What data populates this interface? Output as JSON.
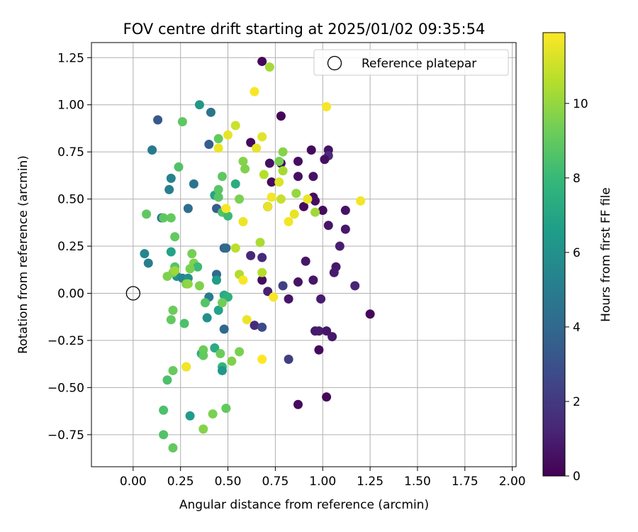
{
  "chart_data": {
    "type": "scatter",
    "title": "FOV centre drift starting at 2025/01/02 09:35:54",
    "xlabel": "Angular distance from reference (arcmin)",
    "ylabel": "Rotation from reference (arcmin)",
    "xlim": [
      -0.22,
      2.02
    ],
    "ylim": [
      -0.92,
      1.33
    ],
    "xticks": [
      "0.00",
      "0.25",
      "0.50",
      "0.75",
      "1.00",
      "1.25",
      "1.50",
      "1.75",
      "2.00"
    ],
    "yticks": [
      "−0.75",
      "−0.50",
      "−0.25",
      "0.00",
      "0.25",
      "0.50",
      "0.75",
      "1.00",
      "1.25"
    ],
    "grid": true,
    "legend": {
      "label": "Reference platepar",
      "placement": "top-right"
    },
    "reference_point": {
      "x": 0.0,
      "y": 0.0
    },
    "colorbar": {
      "label": "Hours from first FF file",
      "min": 0,
      "max": 11.9,
      "ticks": [
        "0",
        "2",
        "4",
        "6",
        "8",
        "10"
      ],
      "colormap": "viridis"
    },
    "points": [
      [
        0.68,
        1.23,
        0.2
      ],
      [
        0.62,
        0.8,
        0.3
      ],
      [
        0.78,
        0.94,
        0.2
      ],
      [
        0.72,
        0.69,
        0.5
      ],
      [
        0.73,
        0.59,
        0.3
      ],
      [
        0.78,
        0.69,
        0.3
      ],
      [
        0.87,
        0.7,
        0.4
      ],
      [
        0.94,
        0.76,
        0.3
      ],
      [
        1.03,
        0.76,
        0.6
      ],
      [
        1.03,
        0.73,
        1.5
      ],
      [
        1.01,
        0.71,
        0.5
      ],
      [
        0.87,
        0.62,
        0.5
      ],
      [
        0.95,
        0.62,
        0.6
      ],
      [
        0.95,
        0.51,
        0.4
      ],
      [
        0.96,
        0.49,
        0.5
      ],
      [
        0.9,
        0.46,
        0.3
      ],
      [
        1.0,
        0.44,
        0.3
      ],
      [
        1.12,
        0.44,
        0.6
      ],
      [
        1.03,
        0.36,
        0.7
      ],
      [
        1.12,
        0.34,
        0.8
      ],
      [
        1.09,
        0.25,
        1.0
      ],
      [
        0.71,
        0.46,
        0.1
      ],
      [
        0.62,
        0.2,
        1.3
      ],
      [
        0.68,
        0.19,
        1.4
      ],
      [
        0.91,
        0.17,
        0.7
      ],
      [
        1.07,
        0.14,
        0.8
      ],
      [
        1.06,
        0.11,
        0.9
      ],
      [
        0.68,
        0.07,
        0.4
      ],
      [
        0.79,
        0.04,
        2.3
      ],
      [
        0.87,
        0.06,
        0.6
      ],
      [
        0.95,
        0.07,
        0.7
      ],
      [
        1.17,
        0.04,
        1.2
      ],
      [
        0.71,
        0.01,
        1.1
      ],
      [
        0.82,
        -0.03,
        0.7
      ],
      [
        0.99,
        -0.03,
        0.9
      ],
      [
        1.25,
        -0.11,
        0.2
      ],
      [
        0.64,
        -0.17,
        1.5
      ],
      [
        0.68,
        -0.18,
        2.7
      ],
      [
        0.96,
        -0.2,
        0.8
      ],
      [
        0.98,
        -0.2,
        0.9
      ],
      [
        1.02,
        -0.2,
        0.7
      ],
      [
        1.05,
        -0.23,
        0.8
      ],
      [
        0.98,
        -0.3,
        0.3
      ],
      [
        0.82,
        -0.35,
        2.2
      ],
      [
        0.87,
        -0.59,
        0.3
      ],
      [
        1.02,
        -0.55,
        0.2
      ],
      [
        0.13,
        0.92,
        3.3
      ],
      [
        0.41,
        0.96,
        4.6
      ],
      [
        0.35,
        1.0,
        6.3
      ],
      [
        0.1,
        0.76,
        4.9
      ],
      [
        0.4,
        0.79,
        3.6
      ],
      [
        0.2,
        0.61,
        5.3
      ],
      [
        0.32,
        0.58,
        4.6
      ],
      [
        0.19,
        0.55,
        5.1
      ],
      [
        0.43,
        0.52,
        7.0
      ],
      [
        0.29,
        0.45,
        4.3
      ],
      [
        0.44,
        0.45,
        3.5
      ],
      [
        0.15,
        0.4,
        4.5
      ],
      [
        0.48,
        0.24,
        3.7
      ],
      [
        0.49,
        0.24,
        4.1
      ],
      [
        0.06,
        0.21,
        5.5
      ],
      [
        0.08,
        0.16,
        5.1
      ],
      [
        0.2,
        0.22,
        6.9
      ],
      [
        0.23,
        0.09,
        5.9
      ],
      [
        0.26,
        0.08,
        5.5
      ],
      [
        0.29,
        0.08,
        6.0
      ],
      [
        0.44,
        0.1,
        4.0
      ],
      [
        0.44,
        0.07,
        6.5
      ],
      [
        0.4,
        -0.02,
        5.0
      ],
      [
        0.39,
        -0.13,
        5.9
      ],
      [
        0.45,
        -0.09,
        6.9
      ],
      [
        0.48,
        -0.01,
        7.3
      ],
      [
        0.5,
        -0.02,
        7.6
      ],
      [
        0.48,
        -0.19,
        4.0
      ],
      [
        0.36,
        -0.32,
        7.3
      ],
      [
        0.43,
        -0.29,
        7.3
      ],
      [
        0.47,
        -0.39,
        7.9
      ],
      [
        0.47,
        -0.41,
        6.3
      ],
      [
        0.3,
        -0.65,
        6.5
      ],
      [
        0.54,
        0.58,
        7.3
      ],
      [
        0.26,
        0.91,
        8.9
      ],
      [
        0.24,
        0.67,
        8.6
      ],
      [
        0.45,
        0.82,
        9.0
      ],
      [
        0.47,
        0.62,
        8.9
      ],
      [
        0.45,
        0.55,
        8.8
      ],
      [
        0.45,
        0.51,
        8.8
      ],
      [
        0.47,
        0.43,
        8.6
      ],
      [
        0.5,
        0.41,
        8.1
      ],
      [
        0.56,
        0.5,
        9.5
      ],
      [
        0.07,
        0.42,
        8.9
      ],
      [
        0.16,
        0.4,
        8.9
      ],
      [
        0.2,
        0.4,
        9.0
      ],
      [
        0.22,
        0.3,
        9.0
      ],
      [
        0.31,
        0.21,
        9.4
      ],
      [
        0.32,
        0.16,
        9.6
      ],
      [
        0.34,
        0.14,
        8.1
      ],
      [
        0.3,
        0.13,
        9.5
      ],
      [
        0.22,
        0.14,
        8.7
      ],
      [
        0.21,
        0.11,
        9.6
      ],
      [
        0.22,
        0.12,
        10.1
      ],
      [
        0.18,
        0.09,
        9.6
      ],
      [
        0.28,
        0.05,
        9.6
      ],
      [
        0.35,
        0.04,
        9.6
      ],
      [
        0.29,
        0.05,
        9.9
      ],
      [
        0.47,
        -0.05,
        9.3
      ],
      [
        0.38,
        -0.05,
        8.7
      ],
      [
        0.21,
        -0.09,
        9.2
      ],
      [
        0.2,
        -0.14,
        9.0
      ],
      [
        0.27,
        -0.16,
        8.5
      ],
      [
        0.37,
        -0.3,
        9.2
      ],
      [
        0.46,
        -0.32,
        9.2
      ],
      [
        0.56,
        -0.31,
        9.5
      ],
      [
        0.37,
        -0.33,
        9.0
      ],
      [
        0.52,
        -0.36,
        9.6
      ],
      [
        0.28,
        -0.39,
        9.6
      ],
      [
        0.21,
        -0.41,
        9.1
      ],
      [
        0.18,
        -0.46,
        8.5
      ],
      [
        0.16,
        -0.62,
        8.5
      ],
      [
        0.16,
        -0.75,
        8.6
      ],
      [
        0.21,
        -0.82,
        9.0
      ],
      [
        0.37,
        -0.72,
        9.7
      ],
      [
        0.42,
        -0.64,
        9.5
      ],
      [
        0.49,
        -0.61,
        9.0
      ],
      [
        0.58,
        0.7,
        9.7
      ],
      [
        0.59,
        0.66,
        9.6
      ],
      [
        0.69,
        0.63,
        10.6
      ],
      [
        0.77,
        0.7,
        9.4
      ],
      [
        0.79,
        0.75,
        9.7
      ],
      [
        0.79,
        0.65,
        10.3
      ],
      [
        0.78,
        0.5,
        10.9
      ],
      [
        0.86,
        0.53,
        10.0
      ],
      [
        0.96,
        0.43,
        10.2
      ],
      [
        0.54,
        0.24,
        10.7
      ],
      [
        0.56,
        0.1,
        10.5
      ],
      [
        0.67,
        0.27,
        10.4
      ],
      [
        0.68,
        0.11,
        10.6
      ],
      [
        0.72,
        1.2,
        10.3
      ],
      [
        0.64,
        1.07,
        11.8
      ],
      [
        0.54,
        0.89,
        11.0
      ],
      [
        0.5,
        0.84,
        11.5
      ],
      [
        0.45,
        0.77,
        11.6
      ],
      [
        0.68,
        0.83,
        11.4
      ],
      [
        0.65,
        0.77,
        11.5
      ],
      [
        0.77,
        0.59,
        11.3
      ],
      [
        0.73,
        0.51,
        11.7
      ],
      [
        0.71,
        0.46,
        11.5
      ],
      [
        0.49,
        0.45,
        11.8
      ],
      [
        0.58,
        0.38,
        11.6
      ],
      [
        0.85,
        0.42,
        11.5
      ],
      [
        0.82,
        0.38,
        11.7
      ],
      [
        0.92,
        0.5,
        11.6
      ],
      [
        1.02,
        0.99,
        11.8
      ],
      [
        1.2,
        0.49,
        11.7
      ],
      [
        0.58,
        0.07,
        11.8
      ],
      [
        0.6,
        -0.14,
        11.6
      ],
      [
        0.74,
        -0.02,
        11.8
      ],
      [
        0.68,
        -0.35,
        11.9
      ],
      [
        0.28,
        -0.39,
        11.7
      ]
    ]
  }
}
